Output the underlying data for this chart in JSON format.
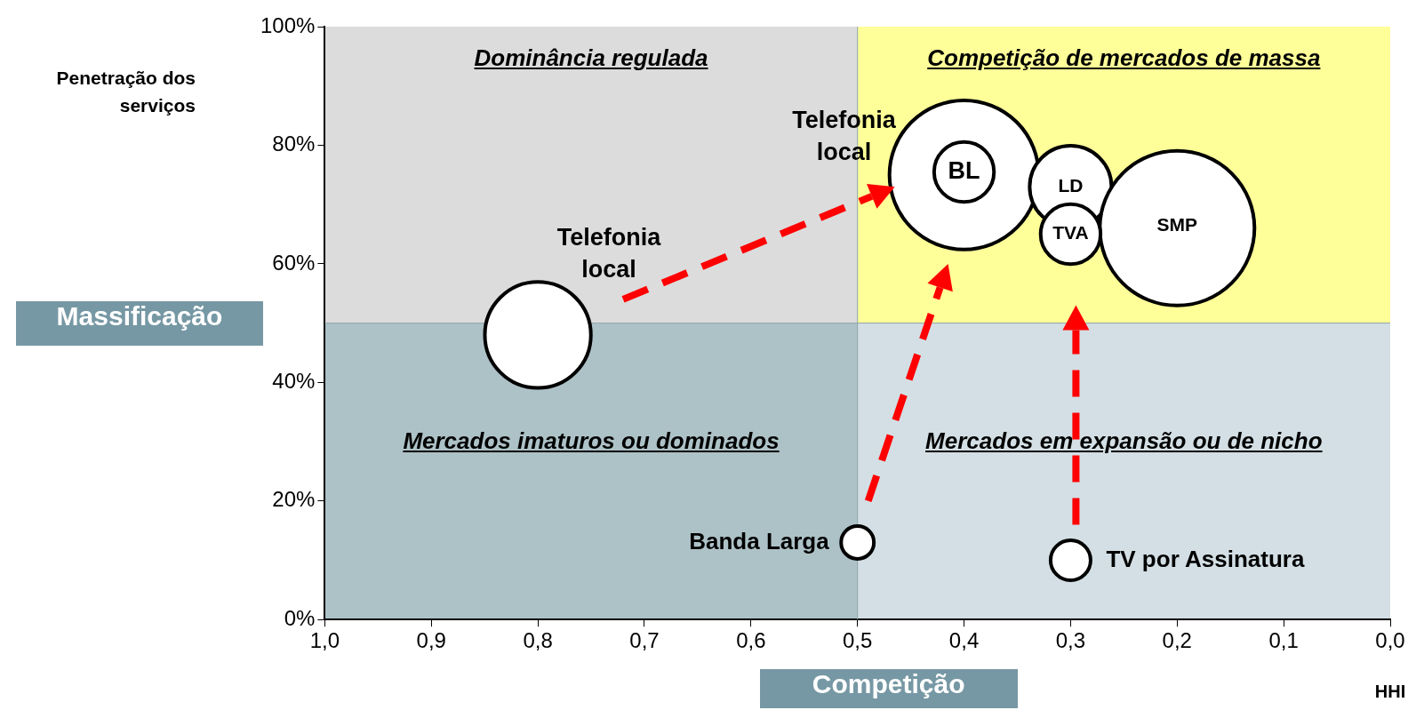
{
  "chart_data": {
    "type": "bubble",
    "xlabel": "HHI",
    "ylabel": "Penetração dos serviços",
    "xlim": [
      1,
      0
    ],
    "xticks": [
      {
        "value": 1,
        "label": "1,0"
      },
      {
        "value": 0.9,
        "label": "0,9"
      },
      {
        "value": 0.8,
        "label": "0,8"
      },
      {
        "value": 0.7,
        "label": "0,7"
      },
      {
        "value": 0.6,
        "label": "0,6"
      },
      {
        "value": 0.5,
        "label": "0,5"
      },
      {
        "value": 0.4,
        "label": "0,4"
      },
      {
        "value": 0.3,
        "label": "0,3"
      },
      {
        "value": 0.2,
        "label": "0,2"
      },
      {
        "value": 0.1,
        "label": "0,1"
      },
      {
        "value": 0,
        "label": "0,0"
      }
    ],
    "ylim": [
      0,
      100
    ],
    "yticks": [
      {
        "value": 0,
        "label": "0%"
      },
      {
        "value": 20,
        "label": "20%"
      },
      {
        "value": 40,
        "label": "40%"
      },
      {
        "value": 60,
        "label": "60%"
      },
      {
        "value": 80,
        "label": "80%"
      },
      {
        "value": 100,
        "label": "100%"
      }
    ],
    "ref_lines": [
      {
        "axis": "x",
        "value": 0.5
      },
      {
        "axis": "y",
        "value": 50
      }
    ],
    "series": [
      {
        "name": "Telefonia local",
        "color": "#ffffff",
        "x": [
          0.8
        ],
        "values": [
          48
        ],
        "sizes": [
          0.47
        ]
      },
      {
        "name": "Banda Larga",
        "color": "#ffffff",
        "x": [
          0.5
        ],
        "values": [
          13
        ],
        "sizes": [
          0.045
        ]
      },
      {
        "name": "TV por Assinatura",
        "color": "#ffffff",
        "x": [
          0.3
        ],
        "values": [
          10
        ],
        "sizes": [
          0.067
        ]
      },
      {
        "name": "Telefonia local",
        "color": "#ffffff",
        "x": [
          0.4
        ],
        "values": [
          75
        ],
        "sizes": [
          0.93
        ]
      },
      {
        "name": "BL",
        "color": "#ffffff",
        "x": [
          0.4
        ],
        "values": [
          75.5
        ],
        "sizes": [
          0.15
        ]
      },
      {
        "name": "LD",
        "color": "#ffffff",
        "x": [
          0.3
        ],
        "values": [
          73
        ],
        "sizes": [
          0.28
        ]
      },
      {
        "name": "SMP",
        "color": "#ffffff",
        "x": [
          0.2
        ],
        "values": [
          66
        ],
        "sizes": [
          1
        ]
      },
      {
        "name": "TVA",
        "color": "#ffffff",
        "x": [
          0.3
        ],
        "values": [
          65
        ],
        "sizes": [
          0.15
        ]
      }
    ],
    "annotations": [
      "Dominância regulada",
      "Competição de mercados de massa",
      "Mercados imaturos ou dominados",
      "Mercados em expansão ou de nicho",
      "Massificação",
      "Competição"
    ],
    "legend": false,
    "grid": false
  }
}
